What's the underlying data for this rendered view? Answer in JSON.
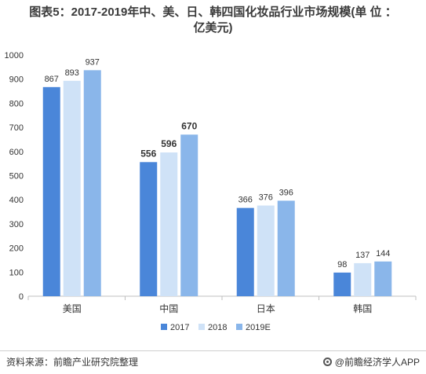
{
  "title_line1": "图表5：2017-2019年中、美、日、韩四国化妆品行业市场规模(单 位 ：",
  "title_line2": "亿美元)",
  "source": "资料来源：前瞻产业研究院整理",
  "brand": "@前瞻经济学人APP",
  "colors": {
    "2017": "#4a86d9",
    "2018": "#cfe2f7",
    "2019E": "#8ab6ea"
  },
  "chart_data": {
    "type": "bar",
    "categories": [
      "美国",
      "中国",
      "日本",
      "韩国"
    ],
    "series": [
      {
        "name": "2017",
        "values": [
          867,
          556,
          366,
          98
        ]
      },
      {
        "name": "2018",
        "values": [
          893,
          596,
          376,
          137
        ]
      },
      {
        "name": "2019E",
        "values": [
          937,
          670,
          396,
          144
        ]
      }
    ],
    "ylim": [
      0,
      1000
    ],
    "yticks": [
      0,
      100,
      200,
      300,
      400,
      500,
      600,
      700,
      800,
      900,
      1000
    ],
    "legend": "bottom-center",
    "grid": false
  }
}
